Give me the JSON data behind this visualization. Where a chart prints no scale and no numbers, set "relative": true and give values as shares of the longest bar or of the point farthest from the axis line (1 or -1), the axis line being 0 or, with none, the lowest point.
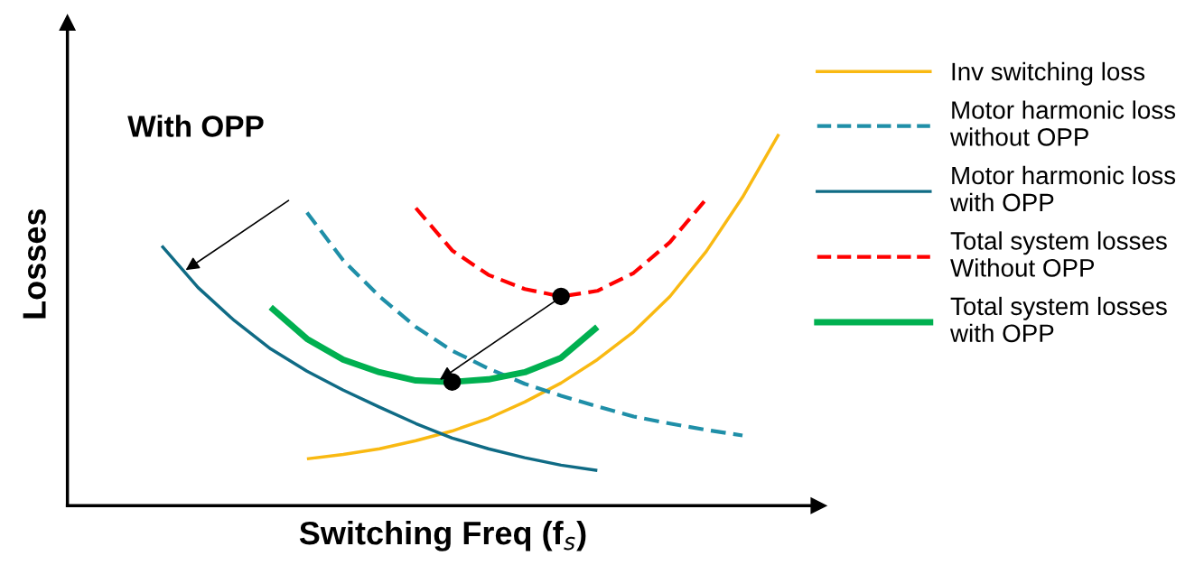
{
  "chart_data": {
    "type": "line",
    "xlabel": "Switching Freq (f$_{s}$)",
    "ylabel": "Losses",
    "categories": [
      null,
      null,
      null,
      null,
      null,
      null,
      null,
      null,
      null,
      null,
      null,
      null,
      null,
      null,
      null,
      null,
      null,
      null
    ],
    "relative": true,
    "legend": "right",
    "marker": "none",
    "annotations": [
      "With OPP"
    ],
    "series": [
      {
        "name": "Inv switching loss",
        "color": "#f9b912",
        "line_style": "solid",
        "values": [
          null,
          null,
          null,
          null,
          0.126,
          0.138,
          0.153,
          0.175,
          0.201,
          0.235,
          0.279,
          0.33,
          0.393,
          0.468,
          0.563,
          0.684,
          0.83,
          1.0
        ]
      },
      {
        "name": "Motor harmonic loss without OPP",
        "color": "#1f8fa8",
        "line_style": "dashed",
        "values": [
          null,
          null,
          null,
          null,
          0.789,
          0.66,
          0.563,
          0.481,
          0.417,
          0.369,
          0.328,
          0.296,
          0.267,
          0.24,
          0.221,
          0.204,
          0.189,
          null
        ]
      },
      {
        "name": "Motor harmonic loss with OPP",
        "color": "#0f6b85",
        "line_style": "solid",
        "values": [
          0.699,
          0.587,
          0.498,
          0.422,
          0.362,
          0.311,
          0.265,
          0.221,
          0.182,
          0.153,
          0.129,
          0.109,
          0.095,
          null,
          null,
          null,
          null,
          null
        ]
      },
      {
        "name": "Total system losses Without OPP",
        "color": "#ff0000",
        "line_style": "dashed",
        "values": [
          null,
          null,
          null,
          null,
          null,
          null,
          null,
          0.801,
          0.687,
          0.621,
          0.583,
          0.563,
          0.578,
          0.626,
          0.709,
          0.825,
          null,
          null
        ]
      },
      {
        "name": "Total system losses with OPP",
        "color": "#00b050",
        "line_style": "solid",
        "values": [
          null,
          null,
          null,
          0.534,
          0.449,
          0.393,
          0.359,
          0.337,
          0.333,
          0.34,
          0.359,
          0.398,
          0.481,
          null,
          null,
          null,
          null,
          null
        ]
      }
    ]
  }
}
